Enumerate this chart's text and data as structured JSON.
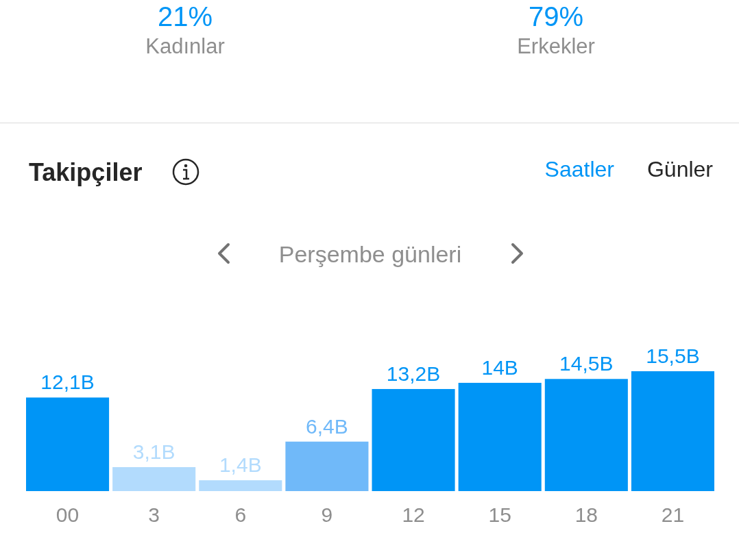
{
  "chart_data": {
    "type": "bar",
    "title": "Takipçiler",
    "subtitle": "Perşembe günleri",
    "annotations": [
      "21%",
      "Kadınlar",
      "79%",
      "Erkekler",
      "Saatler",
      "Günler"
    ],
    "categories": [
      "00",
      "3",
      "6",
      "9",
      "12",
      "15",
      "18",
      "21"
    ],
    "values": [
      12.1,
      3.1,
      1.4,
      6.4,
      13.2,
      14,
      14.5,
      15.5
    ],
    "colors": [
      "#0095f6",
      "#b2dbfd",
      "#b2dbfd",
      "#70b9f9",
      "#0095f6",
      "#0095f6",
      "#0095f6",
      "#0095f6"
    ],
    "value_labels": [
      "12,1B",
      "3,1B",
      "1,4B",
      "6,4B",
      "13,2B",
      "14B",
      "14,5B",
      "15,5B"
    ]
  }
}
